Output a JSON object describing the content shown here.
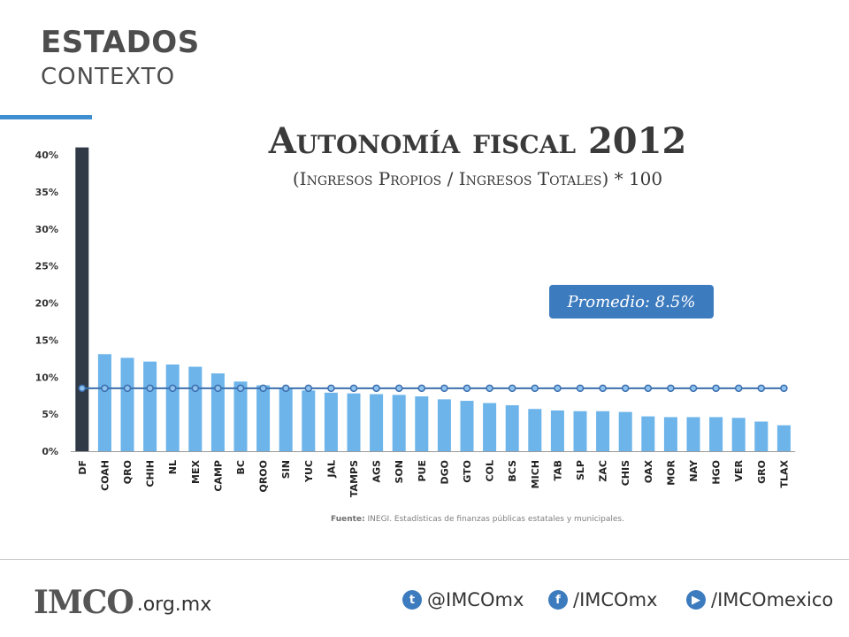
{
  "header": {
    "title": "ESTADOS",
    "subtitle": "CONTEXTO"
  },
  "chart_titles": {
    "title": "Autonomía fiscal 2012",
    "subtitle": "(Ingresos Propios / Ingresos Totales) * 100"
  },
  "average_label": "Promedio:  8.5%",
  "source": {
    "label": "Fuente:",
    "text": " INEGI.  Estadísticas  de  finanzas  públicas  estatales  y  municipales."
  },
  "footer": {
    "logo": "IMCO",
    "domain": ".org.mx",
    "twitter": "@IMCOmx",
    "facebook": "/IMCOmx",
    "youtube": "/IMCOmexico"
  },
  "colors": {
    "bar": "#6cb4ea",
    "highlight_bar": "#2f3a46",
    "average_line": "#3d6fae",
    "accent": "#3e8ed0"
  },
  "chart_data": {
    "type": "bar",
    "title": "Autonomía fiscal 2012",
    "subtitle": "(Ingresos Propios / Ingresos Totales) * 100",
    "categories": [
      "DF",
      "COAH",
      "QRO",
      "CHIH",
      "NL",
      "MEX",
      "CAMP",
      "BC",
      "QROO",
      "SIN",
      "YUC",
      "JAL",
      "TAMPS",
      "AGS",
      "SON",
      "PUE",
      "DGO",
      "GTO",
      "COL",
      "BCS",
      "MICH",
      "TAB",
      "SLP",
      "ZAC",
      "CHIS",
      "OAX",
      "MOR",
      "NAY",
      "HGO",
      "VER",
      "GRO",
      "TLAX"
    ],
    "values": [
      41,
      13.1,
      12.6,
      12.1,
      11.7,
      11.4,
      10.5,
      9.4,
      8.9,
      8.5,
      8.2,
      7.9,
      7.8,
      7.7,
      7.6,
      7.4,
      7.0,
      6.8,
      6.5,
      6.2,
      5.7,
      5.5,
      5.4,
      5.4,
      5.3,
      4.7,
      4.6,
      4.6,
      4.6,
      4.5,
      4.0,
      3.5
    ],
    "highlight": "DF",
    "average": 8.5,
    "ylim": [
      0,
      40
    ],
    "yticks": [
      "0%",
      "5%",
      "10%",
      "15%",
      "20%",
      "25%",
      "30%",
      "35%",
      "40%"
    ],
    "grid": false
  }
}
